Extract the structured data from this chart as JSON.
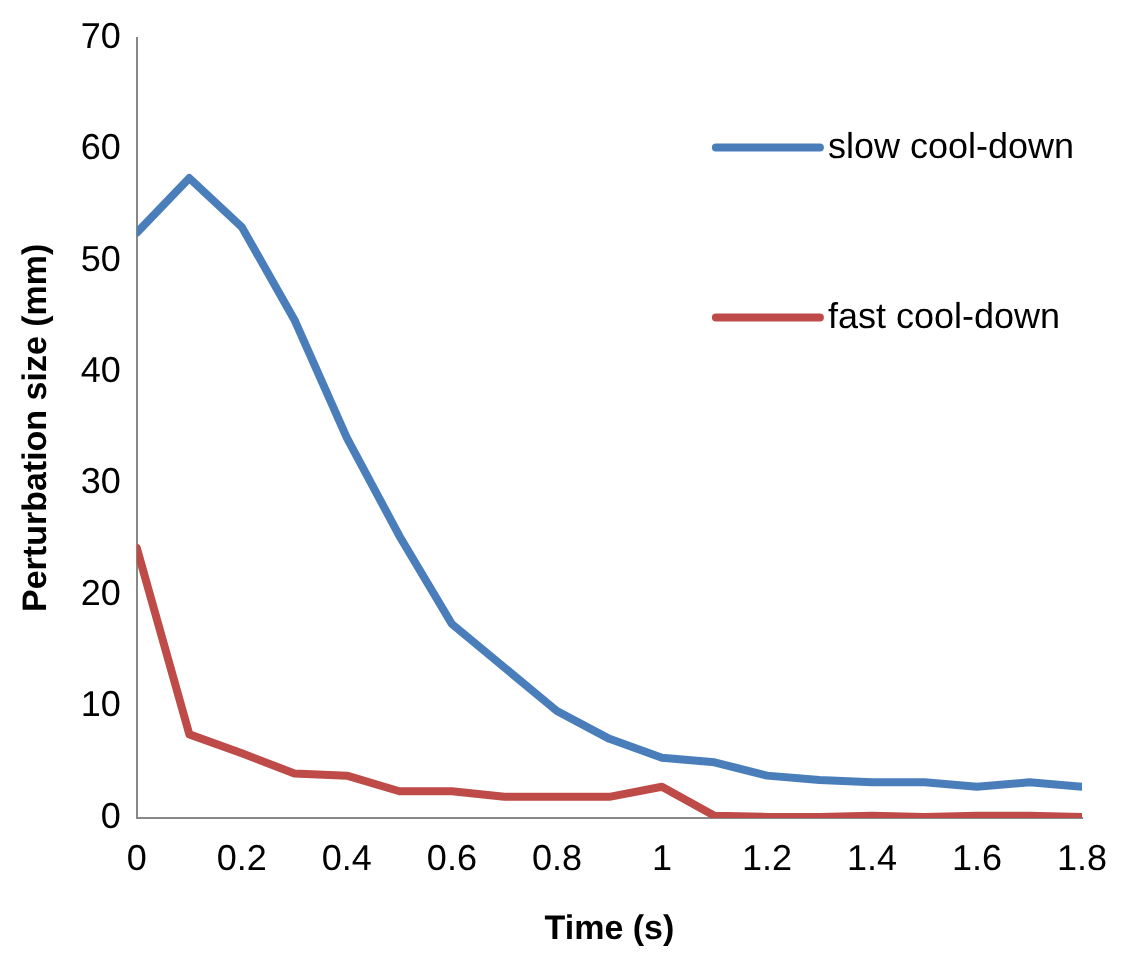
{
  "chart_data": {
    "type": "line",
    "xlabel": "Time (s)",
    "ylabel": "Perturbation size (mm)",
    "x": [
      0,
      0.1,
      0.2,
      0.3,
      0.4,
      0.5,
      0.6,
      0.7,
      0.8,
      0.9,
      1,
      1.1,
      1.2,
      1.3,
      1.4,
      1.5,
      1.6,
      1.7,
      1.8
    ],
    "series": [
      {
        "name": "slow cool-down",
        "color": "#4a7ebb",
        "values": [
          52.5,
          57.4,
          53,
          44.7,
          34.1,
          25.3,
          17.4,
          13.5,
          9.6,
          7.1,
          5.4,
          5,
          3.8,
          3.4,
          3.2,
          3.2,
          2.8,
          3.2,
          2.8
        ]
      },
      {
        "name": "fast cool-down",
        "color": "#be4b48",
        "values": [
          24.2,
          7.5,
          5.8,
          4,
          3.8,
          2.4,
          2.4,
          1.9,
          1.9,
          1.9,
          2.8,
          0.2,
          0.1,
          0.1,
          0.2,
          0.1,
          0.2,
          0.2,
          0.1
        ]
      }
    ],
    "xlim": [
      0,
      1.8
    ],
    "xticks": [
      0,
      0.2,
      0.4,
      0.6,
      0.8,
      1,
      1.2,
      1.4,
      1.6,
      1.8
    ],
    "ylim": [
      0,
      70
    ],
    "yticks": [
      0,
      10,
      20,
      30,
      40,
      50,
      60,
      70
    ],
    "grid": false,
    "legend": "top right",
    "marker": "none",
    "line_style": "solid"
  }
}
